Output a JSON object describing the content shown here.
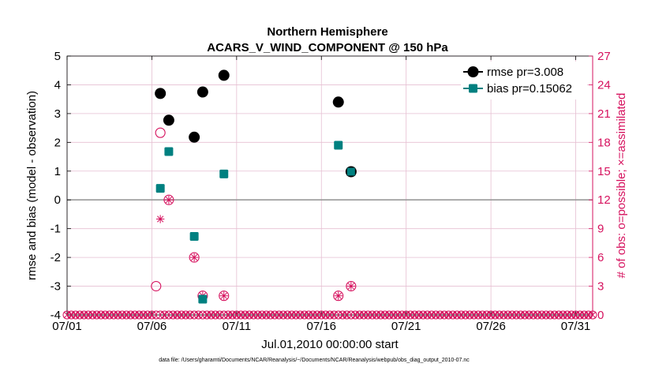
{
  "chart_data": {
    "type": "scatter",
    "title": "Northern Hemisphere",
    "subtitle": "ACARS_V_WIND_COMPONENT @ 150 hPa",
    "xlabel": "Jul.01,2010 00:00:00 start",
    "ylabel": "rmse and bias (model - observation)",
    "y2label": "# of obs: o=possible; ×=assimilated",
    "footnote": "data file: /Users/gharamti/Documents/NCAR/Reanalysis/~/Documents/NCAR/Reanalysis/webpub/obs_diag_output_2010-07.nc",
    "xlim": [
      1,
      32
    ],
    "ylim": [
      -4,
      5
    ],
    "y2lim": [
      0,
      27
    ],
    "xticks": [
      1,
      6,
      11,
      16,
      21,
      26,
      31
    ],
    "xticklabels": [
      "07/01",
      "07/06",
      "07/11",
      "07/16",
      "07/21",
      "07/26",
      "07/31"
    ],
    "yticks": [
      -4,
      -3,
      -2,
      -1,
      0,
      1,
      2,
      3,
      4,
      5
    ],
    "y2ticks": [
      0,
      3,
      6,
      9,
      12,
      15,
      18,
      21,
      24,
      27
    ],
    "colors": {
      "rmse": "#000000",
      "bias": "#008080",
      "obs": "#d6135f",
      "grid": "#e6bfd2",
      "zero": "#999999"
    },
    "series": [
      {
        "name": "rmse",
        "legend": "rmse pr=3.008",
        "x": [
          6.5,
          7.0,
          8.5,
          9.0,
          10.25,
          17.0,
          17.75
        ],
        "y": [
          3.7,
          2.77,
          2.18,
          3.75,
          4.33,
          3.4,
          0.98
        ]
      },
      {
        "name": "bias",
        "legend": "bias pr=0.15062",
        "x": [
          6.5,
          7.0,
          8.5,
          9.0,
          10.25,
          17.0,
          17.75
        ],
        "y": [
          0.4,
          1.68,
          -1.27,
          -3.45,
          0.9,
          1.9,
          0.98
        ]
      }
    ],
    "obs_possible": {
      "x": [
        6.25,
        6.5,
        7.0,
        8.5,
        9.0,
        10.25,
        17.0,
        17.75
      ],
      "y": [
        3,
        19,
        12,
        6,
        2,
        2,
        2,
        3
      ]
    },
    "obs_assimilated": {
      "x": [
        6.5,
        7.0,
        8.5,
        9.0,
        10.25,
        17.0,
        17.75
      ],
      "y": [
        10,
        12,
        6,
        2,
        2,
        2,
        3
      ]
    }
  }
}
